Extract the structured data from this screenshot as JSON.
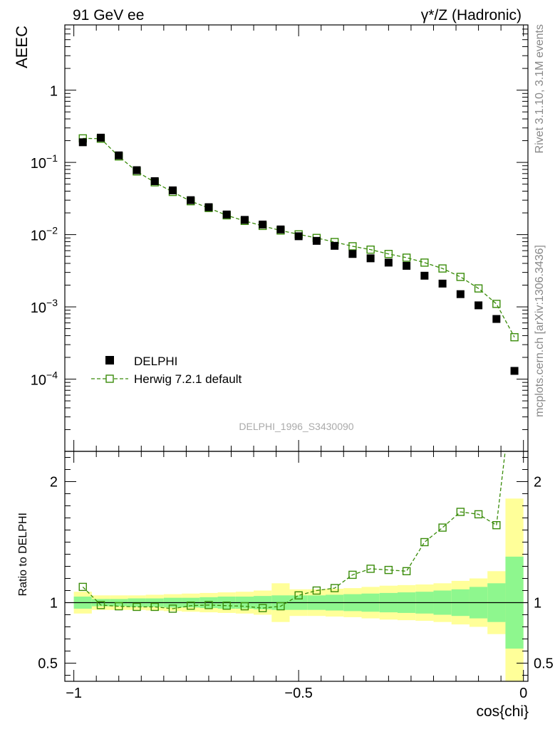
{
  "header": {
    "left": "91 GeV ee",
    "right": "γ*/Z (Hadronic)"
  },
  "side": {
    "rivet": "Rivet 3.1.10,  3.1M events",
    "mcplots": "mcplots.cern.ch [arXiv:1306.3436]"
  },
  "analysis_id": "DELPHI_1996_S3430090",
  "colors": {
    "mc": "#3a8c0a",
    "data": "#000000",
    "band_inner": "#8ef78e",
    "band_outer": "#ffff99"
  },
  "chart_data": [
    {
      "type": "scatter",
      "panel": "main",
      "ylabel": "AEEC",
      "yscale": "log",
      "ylim": [
        1e-05,
        8
      ],
      "xlim": [
        -1.02,
        0.01
      ],
      "yticks_major": [
        "10^-4",
        "10^-3",
        "10^-2",
        "10^-1",
        "1"
      ],
      "legend_position": "lower-left",
      "x": [
        -0.98,
        -0.94,
        -0.9,
        -0.86,
        -0.82,
        -0.78,
        -0.74,
        -0.7,
        -0.66,
        -0.62,
        -0.58,
        -0.54,
        -0.5,
        -0.46,
        -0.42,
        -0.38,
        -0.34,
        -0.3,
        -0.26,
        -0.22,
        -0.18,
        -0.14,
        -0.1,
        -0.06,
        -0.02
      ],
      "series": [
        {
          "name": "DELPHI",
          "marker": "filled-square",
          "values": [
            0.19,
            0.22,
            0.125,
            0.078,
            0.055,
            0.041,
            0.03,
            0.024,
            0.019,
            0.016,
            0.0138,
            0.0118,
            0.0095,
            0.0082,
            0.007,
            0.0054,
            0.0047,
            0.0041,
            0.0037,
            0.0027,
            0.0021,
            0.0015,
            0.00105,
            0.00068,
            0.00013
          ]
        },
        {
          "name": "Herwig 7.2.1 default",
          "marker": "open-square-dashed-line",
          "values": [
            0.215,
            0.213,
            0.121,
            0.075,
            0.053,
            0.039,
            0.029,
            0.0234,
            0.0185,
            0.0155,
            0.0132,
            0.0114,
            0.0101,
            0.009,
            0.0079,
            0.0069,
            0.0062,
            0.0054,
            0.0048,
            0.0041,
            0.0034,
            0.0026,
            0.0018,
            0.0011,
            0.00038
          ]
        }
      ]
    },
    {
      "type": "line",
      "panel": "ratio",
      "ylabel": "Ratio to DELPHI",
      "xlabel": "cos{chi}",
      "ylim": [
        0.35,
        2.25
      ],
      "xlim": [
        -1.02,
        0.01
      ],
      "xticks": [
        "−1",
        "−0.5",
        "0"
      ],
      "yticks": [
        "0.5",
        "1",
        "2"
      ],
      "x": [
        -0.98,
        -0.94,
        -0.9,
        -0.86,
        -0.82,
        -0.78,
        -0.74,
        -0.7,
        -0.66,
        -0.62,
        -0.58,
        -0.54,
        -0.5,
        -0.46,
        -0.42,
        -0.38,
        -0.34,
        -0.3,
        -0.26,
        -0.22,
        -0.18,
        -0.14,
        -0.1,
        -0.06,
        -0.02
      ],
      "series": [
        {
          "name": "Herwig 7.2.1 default",
          "values": [
            1.13,
            0.98,
            0.97,
            0.965,
            0.965,
            0.95,
            0.975,
            0.98,
            0.975,
            0.97,
            0.955,
            0.97,
            1.06,
            1.1,
            1.12,
            1.23,
            1.28,
            1.27,
            1.26,
            1.5,
            1.62,
            1.75,
            1.73,
            1.64,
            2.9
          ]
        }
      ],
      "bands": {
        "inner_halfwidth": [
          0.05,
          0.03,
          0.03,
          0.035,
          0.035,
          0.04,
          0.04,
          0.045,
          0.05,
          0.05,
          0.055,
          0.06,
          0.06,
          0.06,
          0.065,
          0.07,
          0.075,
          0.08,
          0.085,
          0.09,
          0.1,
          0.11,
          0.13,
          0.16,
          0.38
        ],
        "outer_halfwidth": [
          0.09,
          0.06,
          0.06,
          0.06,
          0.065,
          0.07,
          0.075,
          0.08,
          0.085,
          0.09,
          0.1,
          0.16,
          0.11,
          0.11,
          0.115,
          0.12,
          0.13,
          0.14,
          0.145,
          0.15,
          0.16,
          0.18,
          0.2,
          0.26,
          0.86
        ]
      }
    }
  ]
}
